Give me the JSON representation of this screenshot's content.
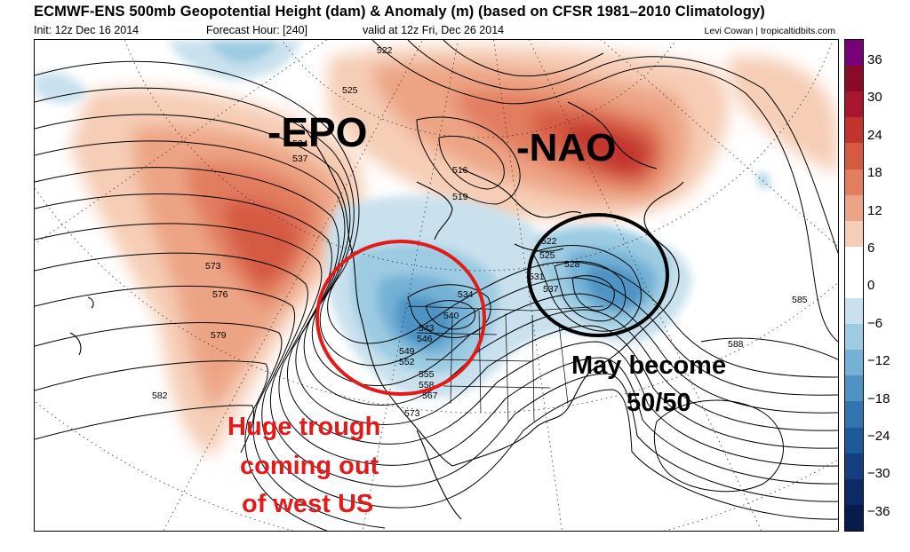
{
  "header": {
    "title": "ECMWF-ENS 500mb Geopotential Height (dam) & Anomaly (m) (based on CFSR 1981–2010 Climatology)",
    "init": "Init: 12z Dec 16 2014",
    "forecast_hour": "Forecast Hour: [240]",
    "valid": "valid at 12z Fri, Dec 26 2014",
    "credit": "Levi Cowan | tropicaltidbits.com"
  },
  "annotations": {
    "epo": "-EPO",
    "nao": "-NAO",
    "trough_line1": "Huge trough",
    "trough_line2": "coming out",
    "trough_line3": "of west US",
    "fifty_line1": "May become",
    "fifty_line2": "50/50"
  },
  "contour_labels": [
    "522",
    "525",
    "528",
    "531",
    "534",
    "537",
    "534",
    "537",
    "540",
    "543",
    "546",
    "549",
    "552",
    "555",
    "558",
    "567",
    "573",
    "573",
    "576",
    "579",
    "582",
    "585",
    "588",
    "516",
    "519",
    "522",
    "525",
    "528",
    "531",
    "537",
    "540",
    "543",
    "546",
    "549",
    "552",
    "555",
    "558"
  ],
  "colorbar": {
    "ticks": [
      "36",
      "30",
      "24",
      "18",
      "12",
      "6",
      "0",
      "−6",
      "−12",
      "−18",
      "−24",
      "−30",
      "−36"
    ],
    "colors": [
      "#780078",
      "#8a0a2a",
      "#a8172f",
      "#c2352f",
      "#d55a42",
      "#e27d5e",
      "#eda485",
      "#f6cdb6",
      "#ffffff",
      "#ffffff",
      "#c9e1ee",
      "#9ccbe2",
      "#74b1d6",
      "#4d94c4",
      "#2f75b0",
      "#1d5a9b",
      "#143f80",
      "#0c2b66",
      "#071b4c"
    ]
  },
  "colors": {
    "trough_circle": "#e41a1a",
    "fifty_circle": "#000000",
    "trough_text": "#e41a1a",
    "annotation_text": "#000000"
  }
}
